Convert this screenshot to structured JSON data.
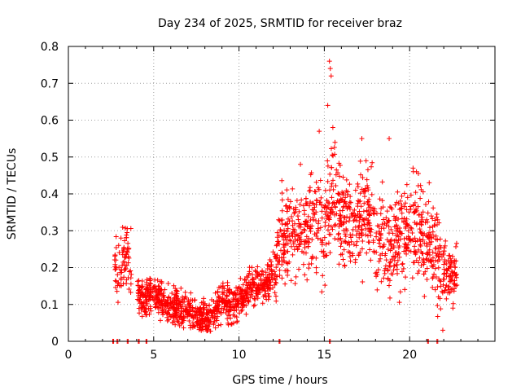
{
  "chart_data": {
    "type": "scatter",
    "title": "Day 234 of 2025, SRMTID for receiver braz",
    "xlabel": "GPS time / hours",
    "ylabel": "SRMTID / TECUs",
    "xlim": [
      0,
      25
    ],
    "ylim": [
      0,
      0.8
    ],
    "xticks": [
      0,
      5,
      10,
      15,
      20
    ],
    "xtick_labels": [
      "0",
      "5",
      "10",
      "15",
      "20"
    ],
    "yticks": [
      0,
      0.1,
      0.2,
      0.3,
      0.4,
      0.5,
      0.6,
      0.7,
      0.8
    ],
    "ytick_labels": [
      "0",
      "0.1",
      "0.2",
      "0.3",
      "0.4",
      "0.5",
      "0.6",
      "0.7",
      "0.8"
    ],
    "grid": true,
    "marker": "plus",
    "color": "#ff0000",
    "trend": [
      [
        2.7,
        0.22
      ],
      [
        3.0,
        0.2
      ],
      [
        3.3,
        0.23
      ],
      [
        3.6,
        0.22
      ],
      [
        4.1,
        0.12
      ],
      [
        4.5,
        0.11
      ],
      [
        5.0,
        0.13
      ],
      [
        5.5,
        0.11
      ],
      [
        6.0,
        0.09
      ],
      [
        6.5,
        0.09
      ],
      [
        7.0,
        0.08
      ],
      [
        7.5,
        0.07
      ],
      [
        8.0,
        0.06
      ],
      [
        8.5,
        0.07
      ],
      [
        9.0,
        0.11
      ],
      [
        9.5,
        0.1
      ],
      [
        10.0,
        0.1
      ],
      [
        10.5,
        0.14
      ],
      [
        11.0,
        0.16
      ],
      [
        11.5,
        0.15
      ],
      [
        12.0,
        0.18
      ],
      [
        12.4,
        0.27
      ],
      [
        13.0,
        0.3
      ],
      [
        13.5,
        0.27
      ],
      [
        14.0,
        0.31
      ],
      [
        14.5,
        0.33
      ],
      [
        15.0,
        0.3
      ],
      [
        15.4,
        0.42
      ],
      [
        16.0,
        0.34
      ],
      [
        16.5,
        0.33
      ],
      [
        17.0,
        0.32
      ],
      [
        17.5,
        0.36
      ],
      [
        18.0,
        0.29
      ],
      [
        18.5,
        0.28
      ],
      [
        19.0,
        0.24
      ],
      [
        19.5,
        0.28
      ],
      [
        20.0,
        0.3
      ],
      [
        20.5,
        0.32
      ],
      [
        21.0,
        0.27
      ],
      [
        21.5,
        0.25
      ],
      [
        22.0,
        0.19
      ],
      [
        22.5,
        0.18
      ],
      [
        22.8,
        0.19
      ]
    ],
    "spikes": [
      [
        15.3,
        0.76
      ],
      [
        15.35,
        0.74
      ],
      [
        15.4,
        0.72
      ],
      [
        15.2,
        0.64
      ],
      [
        15.5,
        0.58
      ],
      [
        14.7,
        0.57
      ],
      [
        17.2,
        0.55
      ],
      [
        18.8,
        0.55
      ],
      [
        20.4,
        0.46
      ],
      [
        20.2,
        0.47
      ],
      [
        13.6,
        0.48
      ]
    ],
    "zero_points": [
      2.6,
      2.85,
      3.45,
      4.1,
      4.55,
      12.35,
      15.3,
      21.05,
      21.6
    ]
  }
}
